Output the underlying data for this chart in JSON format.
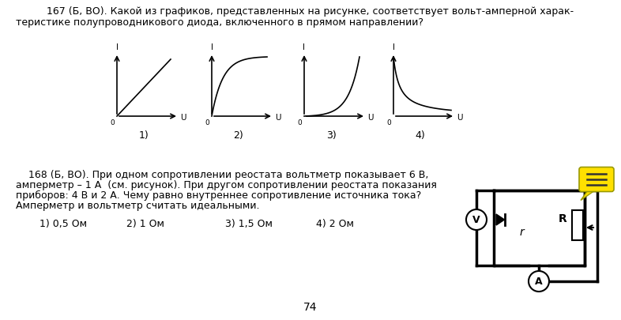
{
  "title_q167_line1": "167 (Б, ВО). Какой из графиков, представленных на рисунке, соответствует вольт-амперной харак-",
  "title_q167_line2": "теристике полупроводникового диода, включенного в прямом направлении?",
  "title_q168_line1": "    168 (Б, ВО). При одном сопротивлении реостата вольтметр показывает 6 В,",
  "title_q168_line2": "амперметр – 1 А  (см. рисунок). При другом сопротивлении реостата показания",
  "title_q168_line3": "приборов: 4 В и 2 А. Чему равно внутреннее сопротивление источника тока?",
  "title_q168_line4": "Амперметр и вольтметр считать идеальными.",
  "answers_168": [
    "1) 0,5 Ом",
    "2) 1 Ом",
    "3) 1,5 Ом",
    "4) 2 Ом"
  ],
  "page_number": "74",
  "bg_color": "#ffffff"
}
